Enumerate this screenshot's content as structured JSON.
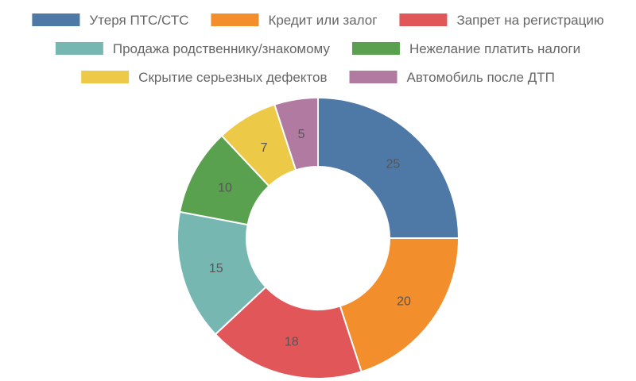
{
  "chart_data": {
    "type": "pie",
    "variant": "doughnut",
    "title": "",
    "legend_position": "top",
    "categories": [
      "Утеря ПТС/СТС",
      "Кредит или залог",
      "Запрет на регистрацию",
      "Продажа родственнику/знакомому",
      "Нежелание платить налоги",
      "Скрытие серьезных дефектов",
      "Автомобиль после ДТП"
    ],
    "values": [
      25,
      20,
      18,
      15,
      10,
      7,
      5
    ],
    "colors": [
      "#4e79a7",
      "#f28e2b",
      "#e15759",
      "#76b7b2",
      "#59a14f",
      "#edc948",
      "#b07aa1"
    ]
  }
}
